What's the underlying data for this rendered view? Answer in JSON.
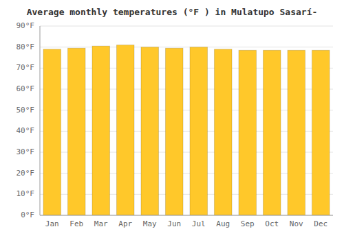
{
  "chart_data": {
    "type": "bar",
    "title": "Average monthly temperatures (°F ) in Mulatupo Sasarí-",
    "categories": [
      "Jan",
      "Feb",
      "Mar",
      "Apr",
      "May",
      "Jun",
      "Jul",
      "Aug",
      "Sep",
      "Oct",
      "Nov",
      "Dec"
    ],
    "values": [
      79.0,
      79.5,
      80.5,
      81.0,
      80.0,
      79.5,
      80.0,
      79.0,
      78.5,
      78.5,
      78.5,
      78.5
    ],
    "color": "#FFC82A",
    "ylim": [
      0,
      90
    ],
    "yticks": [
      {
        "value": 0,
        "label": "0°F"
      },
      {
        "value": 10,
        "label": "10°F"
      },
      {
        "value": 20,
        "label": "20°F"
      },
      {
        "value": 30,
        "label": "30°F"
      },
      {
        "value": 40,
        "label": "40°F"
      },
      {
        "value": 50,
        "label": "50°F"
      },
      {
        "value": 60,
        "label": "60°F"
      },
      {
        "value": 70,
        "label": "70°F"
      },
      {
        "value": 80,
        "label": "80°F"
      },
      {
        "value": 90,
        "label": "90°F"
      }
    ],
    "grid": true
  }
}
